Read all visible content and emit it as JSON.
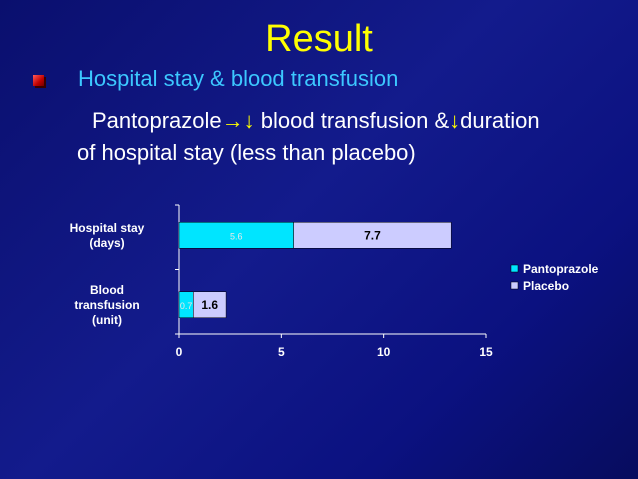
{
  "slide": {
    "title": "Result",
    "subheading": "Hospital stay & blood transfusion",
    "line1": {
      "drug": "Pantoprazole",
      "right_arrow": "→",
      "down_arrow_1": "↓",
      "text1": "blood transfusion &",
      "down_arrow_2": "↓",
      "text2": "duration"
    },
    "line2": "of hospital stay (less than placebo)"
  },
  "colors": {
    "background": "#0f168a",
    "title": "#ffff00",
    "subheading": "#3cc8ff",
    "pantoprazole": "#00e5ff",
    "placebo": "#ccccff"
  },
  "chart_data": {
    "type": "bar",
    "orientation": "horizontal",
    "stacked": true,
    "categories": [
      [
        "Hospital stay",
        "(days)"
      ],
      [
        "Blood",
        "transfusion",
        "(unit)"
      ]
    ],
    "series": [
      {
        "name": "Pantoprazole",
        "values": [
          5.6,
          0.7
        ],
        "labels": [
          "5.6",
          "0.7"
        ]
      },
      {
        "name": "Placebo",
        "values": [
          7.7,
          1.6
        ],
        "labels": [
          "7.7",
          "1.6"
        ]
      }
    ],
    "xticks": [
      "0",
      "5",
      "10",
      "15"
    ],
    "xlim": [
      0,
      15
    ],
    "grid": false,
    "legend_position": "right"
  }
}
